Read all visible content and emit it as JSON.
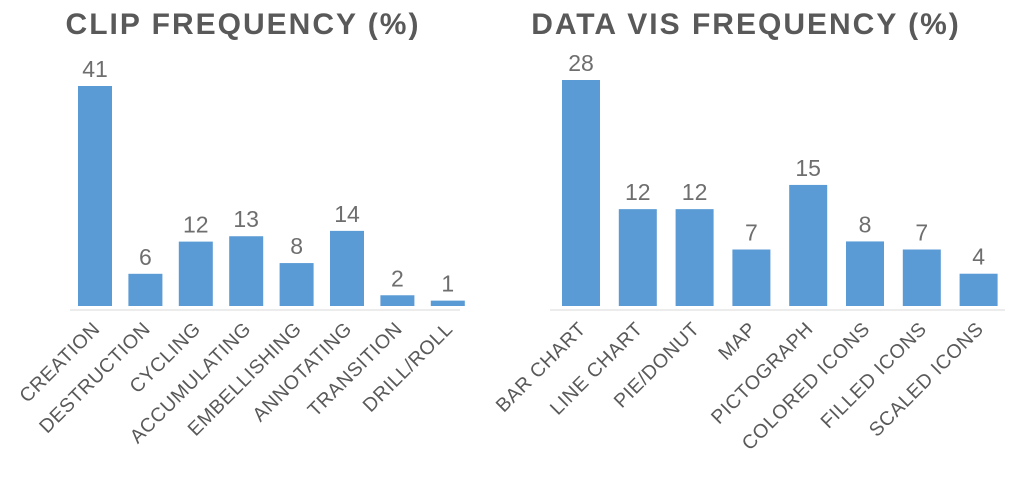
{
  "chart_data": [
    {
      "type": "bar",
      "title": "CLIP FREQUENCY (%)",
      "xlabel": "",
      "ylabel": "",
      "categories": [
        "CREATION",
        "DESTRUCTION",
        "CYCLING",
        "ACCUMULATING",
        "EMBELLISHING",
        "ANNOTATING",
        "TRANSITION",
        "DRILL/ROLL"
      ],
      "values": [
        41,
        6,
        12,
        13,
        8,
        14,
        2,
        1
      ],
      "ylim": [
        0,
        41
      ],
      "grid": false,
      "legend": "none",
      "bar_color": "#5b9bd5"
    },
    {
      "type": "bar",
      "title": "DATA VIS FREQUENCY (%)",
      "xlabel": "",
      "ylabel": "",
      "categories": [
        "BAR CHART",
        "LINE CHART",
        "PIE/DONUT",
        "MAP",
        "PICTOGRAPH",
        "COLORED ICONS",
        "FILLED ICONS",
        "SCALED ICONS"
      ],
      "values": [
        28,
        12,
        12,
        7,
        15,
        8,
        7,
        4
      ],
      "ylim": [
        0,
        28
      ],
      "grid": false,
      "legend": "none",
      "bar_color": "#5b9bd5"
    }
  ]
}
